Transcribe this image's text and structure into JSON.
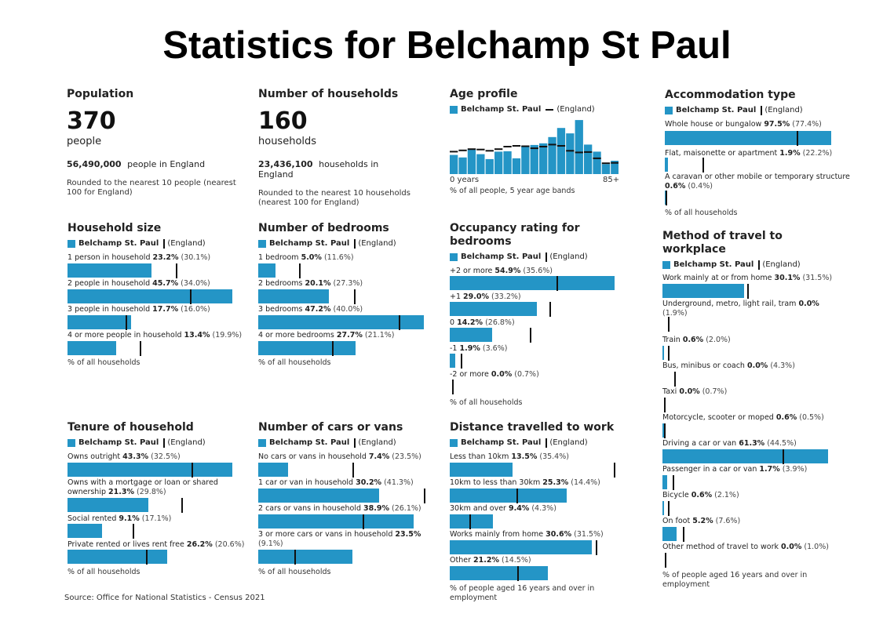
{
  "title": "Statistics for Belchamp St Paul",
  "source": "Source: Office for National Statistics - Census 2021",
  "colors": {
    "local": "#2495c6",
    "england": "#111111"
  },
  "population": {
    "title": "Population",
    "value": "370",
    "unit": "people",
    "england_value": "56,490,000",
    "england_text": "people in England",
    "note": "Rounded to the nearest 10 people (nearest 100 for England)"
  },
  "households": {
    "title": "Number of households",
    "value": "160",
    "unit": "households",
    "england_value": "23,436,100",
    "england_text": "households in England",
    "note": "Rounded to the nearest 10 households (nearest 100 for England)"
  },
  "legend": {
    "local": "Belchamp St. Paul",
    "england": "(England)"
  },
  "chart_data": [
    {
      "type": "bar",
      "id": "age_profile",
      "title": "Age profile",
      "x_start_label": "0 years",
      "x_end_label": "85+",
      "footnote": "% of all people, 5 year age bands",
      "local": [
        4.6,
        4.0,
        6.1,
        4.8,
        3.6,
        5.4,
        5.5,
        3.8,
        6.8,
        7.0,
        7.4,
        8.9,
        11.1,
        9.8,
        13.0,
        7.1,
        5.4,
        2.4,
        3.2
      ],
      "england": [
        5.4,
        5.7,
        6.0,
        5.9,
        5.6,
        6.0,
        6.6,
        6.8,
        6.7,
        6.2,
        6.6,
        7.1,
        6.8,
        5.6,
        5.2,
        5.3,
        3.8,
        2.6,
        2.7
      ]
    },
    {
      "type": "bar",
      "id": "accommodation",
      "title": "Accommodation type",
      "footnote": "% of all households",
      "rows": [
        {
          "label": "Whole house or bungalow",
          "value": 97.5,
          "england": 77.4,
          "value_text": "97.5%",
          "england_text": "(77.4%)"
        },
        {
          "label": "Flat, maisonette or apartment",
          "value": 1.9,
          "england": 22.2,
          "value_text": "1.9%",
          "england_text": "(22.2%)"
        },
        {
          "label": "A caravan or other mobile or temporary structure",
          "value": 0.6,
          "england": 0.4,
          "value_text": "0.6%",
          "england_text": "(0.4%)"
        }
      ]
    },
    {
      "type": "bar",
      "id": "household_size",
      "title": "Household size",
      "footnote": "% of all households",
      "rows": [
        {
          "label": "1 person in household",
          "value": 23.2,
          "england": 30.1,
          "value_text": "23.2%",
          "england_text": "(30.1%)"
        },
        {
          "label": "2 people in household",
          "value": 45.7,
          "england": 34.0,
          "value_text": "45.7%",
          "england_text": "(34.0%)"
        },
        {
          "label": "3 people in household",
          "value": 17.7,
          "england": 16.0,
          "value_text": "17.7%",
          "england_text": "(16.0%)"
        },
        {
          "label": "4 or more people in household",
          "value": 13.4,
          "england": 19.9,
          "value_text": "13.4%",
          "england_text": "(19.9%)"
        }
      ]
    },
    {
      "type": "bar",
      "id": "bedrooms",
      "title": "Number of bedrooms",
      "footnote": "% of all households",
      "rows": [
        {
          "label": "1 bedroom",
          "value": 5.0,
          "england": 11.6,
          "value_text": "5.0%",
          "england_text": "(11.6%)"
        },
        {
          "label": "2 bedrooms",
          "value": 20.1,
          "england": 27.3,
          "value_text": "20.1%",
          "england_text": "(27.3%)"
        },
        {
          "label": "3 bedrooms",
          "value": 47.2,
          "england": 40.0,
          "value_text": "47.2%",
          "england_text": "(40.0%)"
        },
        {
          "label": "4 or more bedrooms",
          "value": 27.7,
          "england": 21.1,
          "value_text": "27.7%",
          "england_text": "(21.1%)"
        }
      ]
    },
    {
      "type": "bar",
      "id": "occupancy",
      "title": "Occupancy rating for bedrooms",
      "footnote": "% of all households",
      "rows": [
        {
          "label": "+2 or more",
          "value": 54.9,
          "england": 35.6,
          "value_text": "54.9%",
          "england_text": "(35.6%)"
        },
        {
          "label": "+1",
          "value": 29.0,
          "england": 33.2,
          "value_text": "29.0%",
          "england_text": "(33.2%)"
        },
        {
          "label": "0",
          "value": 14.2,
          "england": 26.8,
          "value_text": "14.2%",
          "england_text": "(26.8%)"
        },
        {
          "label": "-1",
          "value": 1.9,
          "england": 3.6,
          "value_text": "1.9%",
          "england_text": "(3.6%)"
        },
        {
          "label": "-2 or more",
          "value": 0.0,
          "england": 0.7,
          "value_text": "0.0%",
          "england_text": "(0.7%)"
        }
      ]
    },
    {
      "type": "bar",
      "id": "travel_method",
      "title": "Method of travel to workplace",
      "footnote": "% of people aged 16 years and over in employment",
      "rows": [
        {
          "label": "Work mainly at or from home",
          "value": 30.1,
          "england": 31.5,
          "value_text": "30.1%",
          "england_text": "(31.5%)"
        },
        {
          "label": "Underground, metro, light rail, tram",
          "value": 0.0,
          "england": 1.9,
          "value_text": "0.0%",
          "england_text": "(1.9%)"
        },
        {
          "label": "Train",
          "value": 0.6,
          "england": 2.0,
          "value_text": "0.6%",
          "england_text": "(2.0%)"
        },
        {
          "label": "Bus, minibus or coach",
          "value": 0.0,
          "england": 4.3,
          "value_text": "0.0%",
          "england_text": "(4.3%)"
        },
        {
          "label": "Taxi",
          "value": 0.0,
          "england": 0.7,
          "value_text": "0.0%",
          "england_text": "(0.7%)"
        },
        {
          "label": "Motorcycle, scooter or moped",
          "value": 0.6,
          "england": 0.5,
          "value_text": "0.6%",
          "england_text": "(0.5%)"
        },
        {
          "label": "Driving a car or van",
          "value": 61.3,
          "england": 44.5,
          "value_text": "61.3%",
          "england_text": "(44.5%)"
        },
        {
          "label": "Passenger in a car or van",
          "value": 1.7,
          "england": 3.9,
          "value_text": "1.7%",
          "england_text": "(3.9%)"
        },
        {
          "label": "Bicycle",
          "value": 0.6,
          "england": 2.1,
          "value_text": "0.6%",
          "england_text": "(2.1%)"
        },
        {
          "label": "On foot",
          "value": 5.2,
          "england": 7.6,
          "value_text": "5.2%",
          "england_text": "(7.6%)"
        },
        {
          "label": "Other method of travel to work",
          "value": 0.0,
          "england": 1.0,
          "value_text": "0.0%",
          "england_text": "(1.0%)"
        }
      ]
    },
    {
      "type": "bar",
      "id": "tenure",
      "title": "Tenure of household",
      "footnote": "% of all households",
      "rows": [
        {
          "label": "Owns outright",
          "value": 43.3,
          "england": 32.5,
          "value_text": "43.3%",
          "england_text": "(32.5%)"
        },
        {
          "label": "Owns with a mortgage or loan or shared ownership",
          "value": 21.3,
          "england": 29.8,
          "value_text": "21.3%",
          "england_text": "(29.8%)"
        },
        {
          "label": "Social rented",
          "value": 9.1,
          "england": 17.1,
          "value_text": "9.1%",
          "england_text": "(17.1%)"
        },
        {
          "label": "Private rented or lives rent free",
          "value": 26.2,
          "england": 20.6,
          "value_text": "26.2%",
          "england_text": "(20.6%)"
        }
      ]
    },
    {
      "type": "bar",
      "id": "cars",
      "title": "Number of cars or vans",
      "footnote": "% of all households",
      "rows": [
        {
          "label": "No cars or vans in household",
          "value": 7.4,
          "england": 23.5,
          "value_text": "7.4%",
          "england_text": "(23.5%)"
        },
        {
          "label": "1 car or van in household",
          "value": 30.2,
          "england": 41.3,
          "value_text": "30.2%",
          "england_text": "(41.3%)"
        },
        {
          "label": "2 cars or vans in household",
          "value": 38.9,
          "england": 26.1,
          "value_text": "38.9%",
          "england_text": "(26.1%)"
        },
        {
          "label": "3 or more cars or vans in household",
          "value": 23.5,
          "england": 9.1,
          "value_text": "23.5%",
          "england_text": "(9.1%)"
        }
      ]
    },
    {
      "type": "bar",
      "id": "distance",
      "title": "Distance travelled to work",
      "footnote": "% of people aged 16 years and over in employment",
      "rows": [
        {
          "label": "Less than 10km",
          "value": 13.5,
          "england": 35.4,
          "value_text": "13.5%",
          "england_text": "(35.4%)"
        },
        {
          "label": "10km to less than 30km",
          "value": 25.3,
          "england": 14.4,
          "value_text": "25.3%",
          "england_text": "(14.4%)"
        },
        {
          "label": "30km and over",
          "value": 9.4,
          "england": 4.3,
          "value_text": "9.4%",
          "england_text": "(4.3%)"
        },
        {
          "label": "Works mainly from home",
          "value": 30.6,
          "england": 31.5,
          "value_text": "30.6%",
          "england_text": "(31.5%)"
        },
        {
          "label": "Other",
          "value": 21.2,
          "england": 14.5,
          "value_text": "21.2%",
          "england_text": "(14.5%)"
        }
      ]
    }
  ]
}
